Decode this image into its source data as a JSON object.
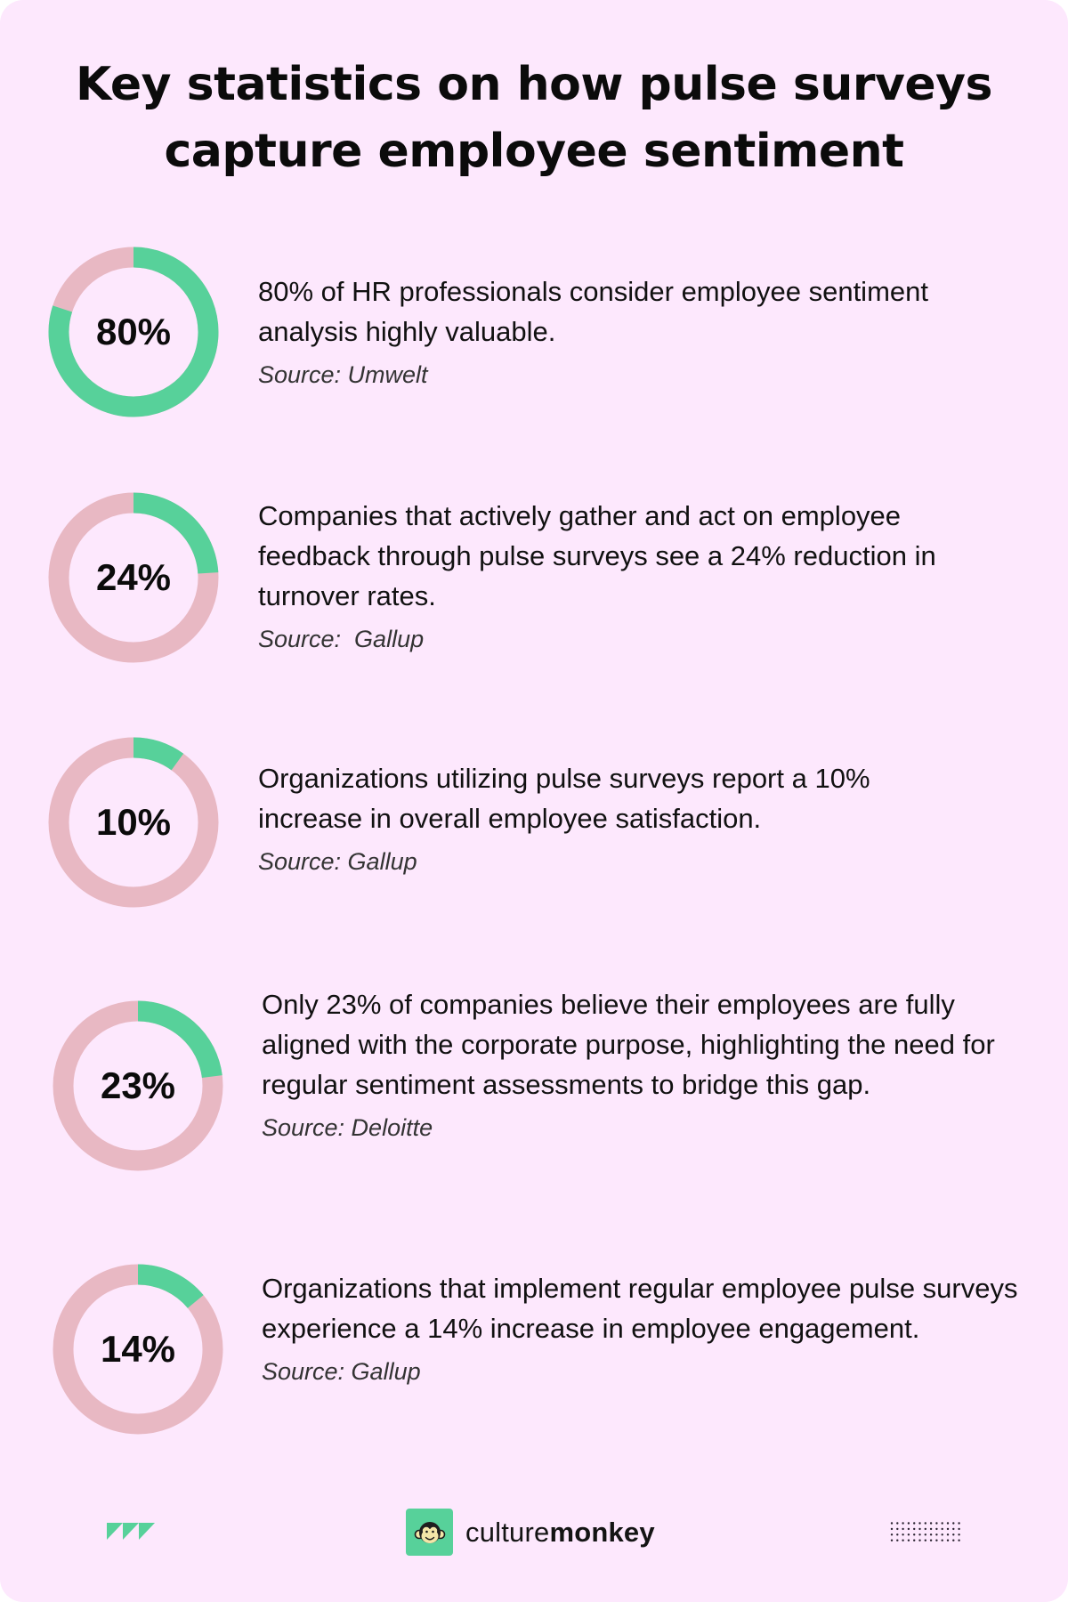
{
  "title": {
    "line1": "Key statistics on how pulse surveys",
    "line2": "capture employee sentiment"
  },
  "colors": {
    "background": "#FDE8FD",
    "filled": "#57D19A",
    "remaining": "#E8B8C3",
    "text": "#111111"
  },
  "stats": [
    {
      "value": 80,
      "label": "80%",
      "text": "80% of HR professionals consider employee sentiment analysis highly valuable.",
      "source": "Source: Umwelt"
    },
    {
      "value": 24,
      "label": "24%",
      "text": "Companies that actively gather and act on employee feedback through pulse surveys see a 24% reduction in turnover rates.",
      "source": "Source:  Gallup"
    },
    {
      "value": 10,
      "label": "10%",
      "text": "Organizations utilizing pulse surveys report a 10% increase in overall employee satisfaction.",
      "source": "Source: Gallup"
    },
    {
      "value": 23,
      "label": "23%",
      "text": "Only 23% of companies believe their employees are fully aligned with the corporate purpose, highlighting the need for regular sentiment assessments to bridge this gap.",
      "source": "Source: Deloitte"
    },
    {
      "value": 14,
      "label": "14%",
      "text": "Organizations that implement regular employee pulse surveys experience a 14% increase in employee engagement.",
      "source": "Source: Gallup"
    }
  ],
  "footer": {
    "brand_light": "culture",
    "brand_bold": "monkey",
    "left_icon": "triangles-icon",
    "logo_icon": "monkey-face-icon",
    "right_icon": "dot-grid-icon"
  },
  "chart_data": {
    "type": "pie",
    "subtype": "donut",
    "title": "Key statistics on how pulse surveys capture employee sentiment",
    "categories": [
      "HR professionals who consider employee sentiment analysis highly valuable",
      "Reduction in turnover rates (pulse surveys)",
      "Increase in overall employee satisfaction",
      "Companies believing employees fully aligned with corporate purpose",
      "Increase in employee engagement"
    ],
    "values": [
      80,
      24,
      10,
      23,
      14
    ],
    "unit": "%",
    "sources": [
      "Umwelt",
      "Gallup",
      "Gallup",
      "Deloitte",
      "Gallup"
    ],
    "series_colors": {
      "filled": "#57D19A",
      "remaining": "#E8B8C3"
    }
  }
}
